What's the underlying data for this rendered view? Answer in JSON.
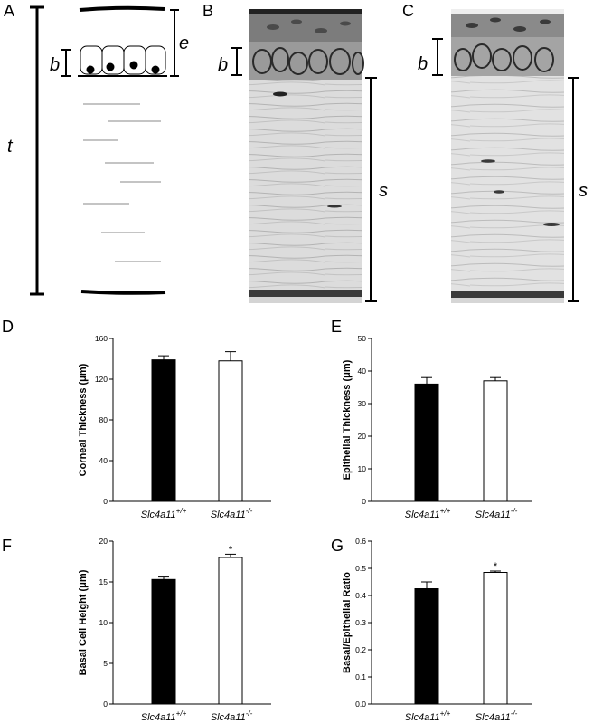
{
  "panels": {
    "a": {
      "letter": "A",
      "t": "t",
      "e": "e",
      "b": "b"
    },
    "b": {
      "letter": "B",
      "b": "b",
      "s": "s"
    },
    "c": {
      "letter": "C",
      "b": "b",
      "s": "s"
    }
  },
  "colors": {
    "wildtype": "#000000",
    "knockout": "#ffffff"
  },
  "chart_data": [
    {
      "panel": "D",
      "type": "bar",
      "categories": [
        "Slc4a11",
        "Slc4a11"
      ],
      "category_superscripts": [
        "+/+",
        "-/-"
      ],
      "values": [
        139,
        138
      ],
      "errors": [
        4,
        9
      ],
      "ylabel": "Corneal Thickness (μm)",
      "ylim": [
        0,
        160
      ],
      "yticks": [
        0,
        40,
        80,
        120,
        160
      ],
      "significant": [
        false,
        false
      ]
    },
    {
      "panel": "E",
      "type": "bar",
      "categories": [
        "Slc4a11",
        "Slc4a11"
      ],
      "category_superscripts": [
        "+/+",
        "-/-"
      ],
      "values": [
        36,
        37
      ],
      "errors": [
        2,
        1
      ],
      "ylabel": "Epithelial Thickness (μm)",
      "ylim": [
        0,
        50
      ],
      "yticks": [
        0,
        10,
        20,
        30,
        40,
        50
      ],
      "significant": [
        false,
        false
      ]
    },
    {
      "panel": "F",
      "type": "bar",
      "categories": [
        "Slc4a11",
        "Slc4a11"
      ],
      "category_superscripts": [
        "+/+",
        "-/-"
      ],
      "values": [
        15.3,
        18
      ],
      "errors": [
        0.3,
        0.4
      ],
      "ylabel": "Basal Cell Height (μm)",
      "ylim": [
        0,
        20
      ],
      "yticks": [
        0,
        5,
        10,
        15,
        20
      ],
      "significant": [
        false,
        true
      ]
    },
    {
      "panel": "G",
      "type": "bar",
      "categories": [
        "Slc4a11",
        "Slc4a11"
      ],
      "category_superscripts": [
        "+/+",
        "-/-"
      ],
      "values": [
        0.425,
        0.485
      ],
      "errors": [
        0.025,
        0.005
      ],
      "ylabel": "Basal/Epithelial Ratio",
      "ylim": [
        0,
        0.6
      ],
      "yticks": [
        "0.0",
        "0.1",
        "0.2",
        "0.3",
        "0.4",
        "0.5",
        "0.6"
      ],
      "significant": [
        false,
        true
      ]
    }
  ],
  "significance_marker": "*"
}
